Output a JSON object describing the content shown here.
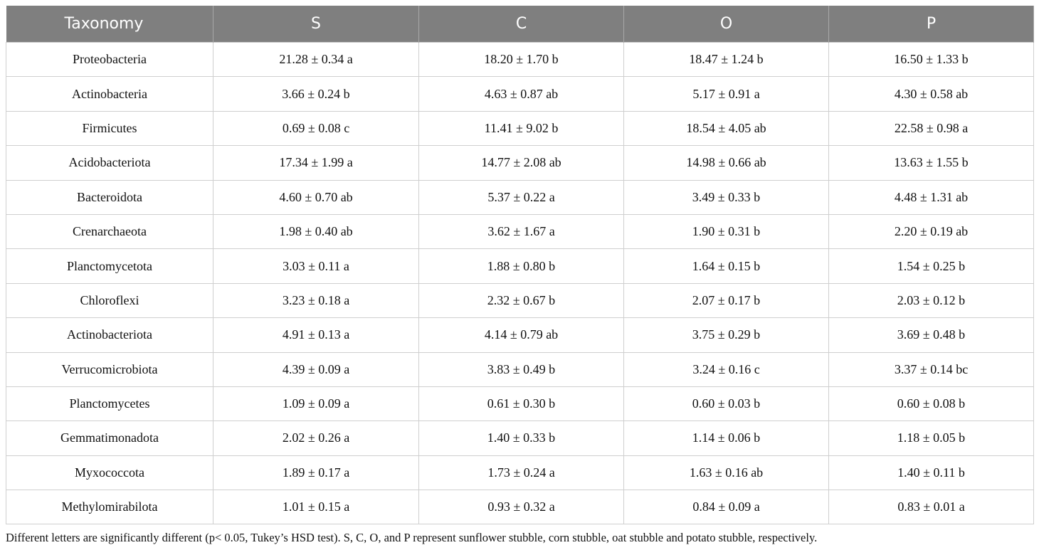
{
  "table": {
    "headers": [
      "Taxonomy",
      "S",
      "C",
      "O",
      "P"
    ],
    "rows": [
      [
        "Proteobacteria",
        "21.28 ± 0.34 a",
        "18.20 ± 1.70 b",
        "18.47 ± 1.24 b",
        "16.50 ± 1.33 b"
      ],
      [
        "Actinobacteria",
        "3.66 ± 0.24 b",
        "4.63 ± 0.87 ab",
        "5.17 ± 0.91 a",
        "4.30 ± 0.58 ab"
      ],
      [
        "Firmicutes",
        "0.69 ± 0.08 c",
        "11.41 ± 9.02 b",
        "18.54 ± 4.05 ab",
        "22.58 ± 0.98 a"
      ],
      [
        "Acidobacteriota",
        "17.34 ± 1.99 a",
        "14.77 ± 2.08 ab",
        "14.98 ± 0.66 ab",
        "13.63 ± 1.55 b"
      ],
      [
        "Bacteroidota",
        "4.60 ± 0.70 ab",
        "5.37 ± 0.22 a",
        "3.49 ± 0.33 b",
        "4.48 ± 1.31 ab"
      ],
      [
        "Crenarchaeota",
        "1.98 ± 0.40 ab",
        "3.62 ± 1.67 a",
        "1.90 ± 0.31 b",
        "2.20 ± 0.19 ab"
      ],
      [
        "Planctomycetota",
        "3.03 ± 0.11 a",
        "1.88 ± 0.80 b",
        "1.64 ± 0.15 b",
        "1.54 ± 0.25 b"
      ],
      [
        "Chloroflexi",
        "3.23 ± 0.18 a",
        "2.32 ± 0.67 b",
        "2.07 ± 0.17 b",
        "2.03 ± 0.12 b"
      ],
      [
        "Actinobacteriota",
        "4.91 ± 0.13 a",
        "4.14 ± 0.79 ab",
        "3.75 ± 0.29 b",
        "3.69 ± 0.48 b"
      ],
      [
        "Verrucomicrobiota",
        "4.39 ± 0.09 a",
        "3.83 ± 0.49 b",
        "3.24 ± 0.16 c",
        "3.37 ± 0.14 bc"
      ],
      [
        "Planctomycetes",
        "1.09 ± 0.09 a",
        "0.61 ± 0.30 b",
        "0.60 ± 0.03 b",
        "0.60 ± 0.08 b"
      ],
      [
        "Gemmatimonadota",
        "2.02 ± 0.26 a",
        "1.40 ± 0.33 b",
        "1.14 ± 0.06 b",
        "1.18 ± 0.05 b"
      ],
      [
        "Myxococcota",
        "1.89 ± 0.17 a",
        "1.73 ± 0.24 a",
        "1.63 ± 0.16 ab",
        "1.40 ± 0.11 b"
      ],
      [
        "Methylomirabilota",
        "1.01 ± 0.15 a",
        "0.93 ± 0.32 a",
        "0.84 ± 0.09 a",
        "0.83 ± 0.01 a"
      ]
    ]
  },
  "footnote": "Different letters are significantly different (p< 0.05, Tukey’s HSD test). S, C, O, and P represent sunflower stubble, corn stubble, oat stubble and potato stubble, respectively.",
  "colors": {
    "header_bg": "#7f7f7f",
    "header_text": "#ffffff",
    "grid": "#cfcfcf"
  }
}
